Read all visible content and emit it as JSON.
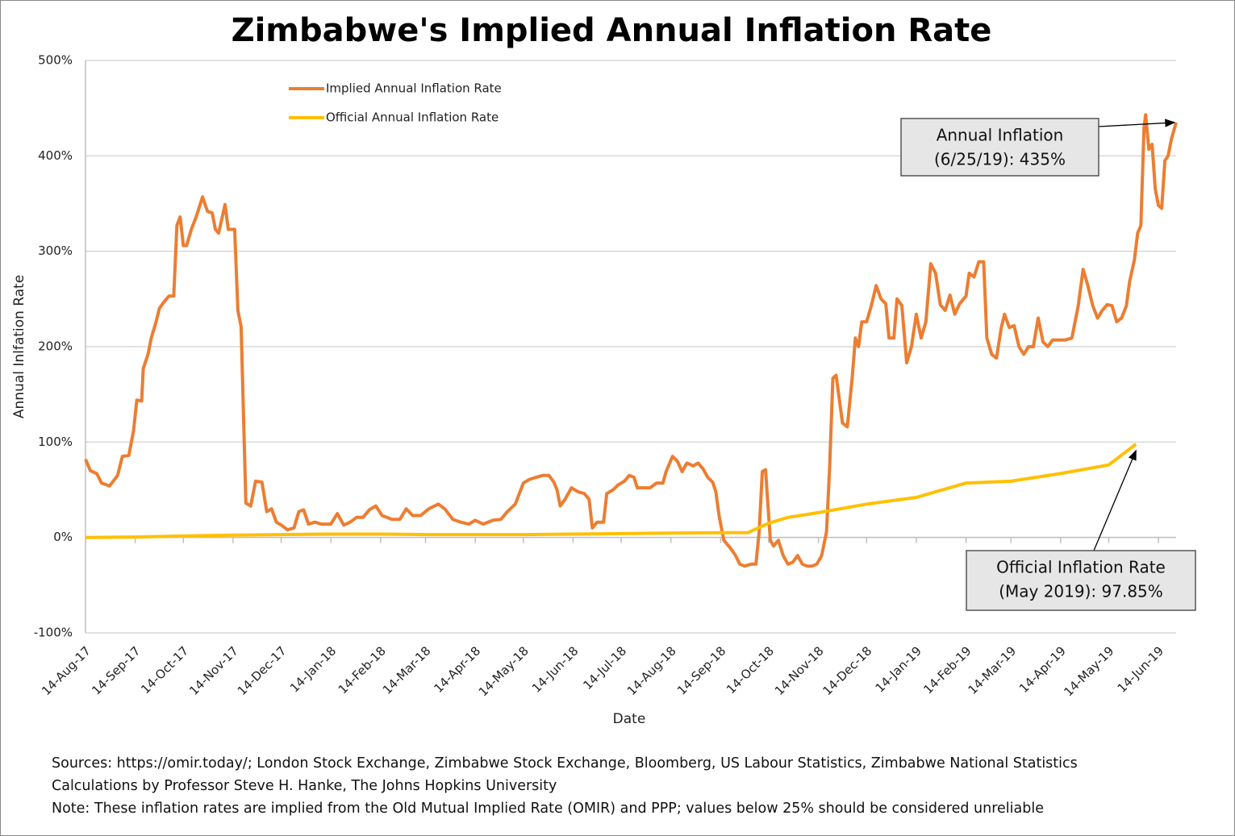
{
  "chart_data": {
    "type": "line",
    "title": "Zimbabwe's Implied Annual Inflation Rate",
    "x_label": "Date",
    "y_label": "Annual Inlfation Rate",
    "xlim": [
      "2017-08-14",
      "2019-06-25"
    ],
    "xticks": [
      {
        "value": "2017-08-14",
        "label": "14-Aug-17"
      },
      {
        "value": "2017-09-14",
        "label": "14-Sep-17"
      },
      {
        "value": "2017-10-14",
        "label": "14-Oct-17"
      },
      {
        "value": "2017-11-14",
        "label": "14-Nov-17"
      },
      {
        "value": "2017-12-14",
        "label": "14-Dec-17"
      },
      {
        "value": "2018-01-14",
        "label": "14-Jan-18"
      },
      {
        "value": "2018-02-14",
        "label": "14-Feb-18"
      },
      {
        "value": "2018-03-14",
        "label": "14-Mar-18"
      },
      {
        "value": "2018-04-14",
        "label": "14-Apr-18"
      },
      {
        "value": "2018-05-14",
        "label": "14-May-18"
      },
      {
        "value": "2018-06-14",
        "label": "14-Jun-18"
      },
      {
        "value": "2018-07-14",
        "label": "14-Jul-18"
      },
      {
        "value": "2018-08-14",
        "label": "14-Aug-18"
      },
      {
        "value": "2018-09-14",
        "label": "14-Sep-18"
      },
      {
        "value": "2018-10-14",
        "label": "14-Oct-18"
      },
      {
        "value": "2018-11-14",
        "label": "14-Nov-18"
      },
      {
        "value": "2018-12-14",
        "label": "14-Dec-18"
      },
      {
        "value": "2019-01-14",
        "label": "14-Jan-19"
      },
      {
        "value": "2019-02-14",
        "label": "14-Feb-19"
      },
      {
        "value": "2019-03-14",
        "label": "14-Mar-19"
      },
      {
        "value": "2019-04-14",
        "label": "14-Apr-19"
      },
      {
        "value": "2019-05-14",
        "label": "14-May-19"
      },
      {
        "value": "2019-06-14",
        "label": "14-Jun-19"
      }
    ],
    "ylim": [
      -100,
      500
    ],
    "yticks": [
      {
        "value": -100,
        "label": "-100%"
      },
      {
        "value": 0,
        "label": "0%"
      },
      {
        "value": 100,
        "label": "100%"
      },
      {
        "value": 200,
        "label": "200%"
      },
      {
        "value": 300,
        "label": "300%"
      },
      {
        "value": 400,
        "label": "400%"
      },
      {
        "value": 500,
        "label": "500%"
      }
    ],
    "grid": true,
    "legend": "top-left",
    "series": [
      {
        "name": "Implied Annual Inflation Rate",
        "color": "#ED7D31",
        "x": [
          "2017-08-14",
          "2017-08-17",
          "2017-08-21",
          "2017-08-24",
          "2017-08-29",
          "2017-09-03",
          "2017-09-06",
          "2017-09-10",
          "2017-09-13",
          "2017-09-15",
          "2017-09-18",
          "2017-09-19",
          "2017-09-22",
          "2017-09-24",
          "2017-09-27",
          "2017-09-29",
          "2017-10-02",
          "2017-10-05",
          "2017-10-08",
          "2017-10-10",
          "2017-10-12",
          "2017-10-14",
          "2017-10-16",
          "2017-10-19",
          "2017-10-22",
          "2017-10-26",
          "2017-10-29",
          "2017-11-01",
          "2017-11-03",
          "2017-11-05",
          "2017-11-09",
          "2017-11-11",
          "2017-11-15",
          "2017-11-17",
          "2017-11-19",
          "2017-11-22",
          "2017-11-25",
          "2017-11-28",
          "2017-12-02",
          "2017-12-05",
          "2017-12-08",
          "2017-12-11",
          "2017-12-14",
          "2017-12-18",
          "2017-12-22",
          "2017-12-25",
          "2017-12-28",
          "2017-12-31",
          "2018-01-04",
          "2018-01-08",
          "2018-01-14",
          "2018-01-18",
          "2018-01-22",
          "2018-01-26",
          "2018-01-30",
          "2018-02-03",
          "2018-02-07",
          "2018-02-11",
          "2018-02-15",
          "2018-02-21",
          "2018-02-26",
          "2018-03-02",
          "2018-03-06",
          "2018-03-11",
          "2018-03-16",
          "2018-03-22",
          "2018-03-26",
          "2018-03-31",
          "2018-04-05",
          "2018-04-10",
          "2018-04-14",
          "2018-04-19",
          "2018-04-25",
          "2018-04-30",
          "2018-05-04",
          "2018-05-09",
          "2018-05-14",
          "2018-05-18",
          "2018-05-22",
          "2018-05-26",
          "2018-05-30",
          "2018-06-02",
          "2018-06-04",
          "2018-06-06",
          "2018-06-09",
          "2018-06-13",
          "2018-06-17",
          "2018-06-21",
          "2018-06-24",
          "2018-06-26",
          "2018-06-29",
          "2018-07-03",
          "2018-07-05",
          "2018-07-09",
          "2018-07-12",
          "2018-07-16",
          "2018-07-19",
          "2018-07-22",
          "2018-07-24",
          "2018-07-28",
          "2018-08-01",
          "2018-08-05",
          "2018-08-09",
          "2018-08-11",
          "2018-08-15",
          "2018-08-18",
          "2018-08-21",
          "2018-08-24",
          "2018-08-28",
          "2018-08-31",
          "2018-09-03",
          "2018-09-06",
          "2018-09-09",
          "2018-09-11",
          "2018-09-13",
          "2018-09-16",
          "2018-09-20",
          "2018-09-23",
          "2018-09-26",
          "2018-09-29",
          "2018-10-03",
          "2018-10-06",
          "2018-10-08",
          "2018-10-10",
          "2018-10-12",
          "2018-10-15",
          "2018-10-17",
          "2018-10-20",
          "2018-10-23",
          "2018-10-26",
          "2018-10-29",
          "2018-11-01",
          "2018-11-04",
          "2018-11-07",
          "2018-11-10",
          "2018-11-13",
          "2018-11-16",
          "2018-11-19",
          "2018-11-21",
          "2018-11-23",
          "2018-11-25",
          "2018-11-29",
          "2018-12-02",
          "2018-12-05",
          "2018-12-07",
          "2018-12-09",
          "2018-12-11",
          "2018-12-14",
          "2018-12-17",
          "2018-12-20",
          "2018-12-23",
          "2018-12-26",
          "2018-12-28",
          "2018-12-31",
          "2019-01-02",
          "2019-01-05",
          "2019-01-08",
          "2019-01-11",
          "2019-01-14",
          "2019-01-17",
          "2019-01-20",
          "2019-01-23",
          "2019-01-26",
          "2019-01-29",
          "2019-02-01",
          "2019-02-04",
          "2019-02-07",
          "2019-02-10",
          "2019-02-14",
          "2019-02-16",
          "2019-02-19",
          "2019-02-22",
          "2019-02-25",
          "2019-02-27",
          "2019-03-02",
          "2019-03-05",
          "2019-03-08",
          "2019-03-10",
          "2019-03-13",
          "2019-03-16",
          "2019-03-19",
          "2019-03-22",
          "2019-03-25",
          "2019-03-28",
          "2019-03-31",
          "2019-04-03",
          "2019-04-06",
          "2019-04-09",
          "2019-04-13",
          "2019-04-17",
          "2019-04-21",
          "2019-04-25",
          "2019-04-28",
          "2019-05-01",
          "2019-05-04",
          "2019-05-07",
          "2019-05-10",
          "2019-05-13",
          "2019-05-16",
          "2019-05-19",
          "2019-05-22",
          "2019-05-25",
          "2019-05-27",
          "2019-05-30",
          "2019-06-01",
          "2019-06-03",
          "2019-06-05",
          "2019-06-06",
          "2019-06-08",
          "2019-06-10",
          "2019-06-12",
          "2019-06-14",
          "2019-06-16",
          "2019-06-18",
          "2019-06-20",
          "2019-06-22",
          "2019-06-25"
        ],
        "values": [
          82,
          70,
          67,
          57,
          54,
          65,
          85,
          86,
          112,
          144,
          143,
          177,
          192,
          209,
          226,
          240,
          247,
          253,
          253,
          327,
          336,
          306,
          306,
          323,
          336,
          357,
          342,
          340,
          323,
          319,
          349,
          323,
          323,
          238,
          221,
          36,
          33,
          59,
          58,
          27,
          30,
          16,
          13,
          8,
          10,
          27,
          29,
          14,
          16,
          14,
          14,
          25,
          13,
          16,
          21,
          21,
          29,
          33,
          23,
          19,
          19,
          30,
          23,
          23,
          30,
          35,
          30,
          19,
          16,
          14,
          18,
          14,
          18,
          19,
          27,
          35,
          57,
          61,
          63,
          65,
          65,
          58,
          50,
          33,
          40,
          52,
          48,
          46,
          40,
          10,
          16,
          16,
          46,
          50,
          55,
          59,
          65,
          63,
          52,
          52,
          52,
          57,
          57,
          69,
          85,
          80,
          69,
          78,
          75,
          78,
          72,
          63,
          58,
          48,
          23,
          -3,
          -11,
          -18,
          -28,
          -30,
          -28,
          -28,
          6,
          69,
          71,
          -3,
          -9,
          -3,
          -19,
          -28,
          -26,
          -19,
          -28,
          -30,
          -30,
          -28,
          -19,
          6,
          74,
          167,
          170,
          120,
          116,
          167,
          209,
          200,
          226,
          226,
          243,
          264,
          250,
          245,
          209,
          209,
          250,
          243,
          183,
          200,
          234,
          209,
          226,
          287,
          277,
          244,
          238,
          254,
          234,
          245,
          253,
          277,
          273,
          289,
          289,
          209,
          192,
          188,
          220,
          234,
          220,
          222,
          200,
          192,
          200,
          200,
          230,
          205,
          200,
          207,
          207,
          207,
          209,
          243,
          281,
          264,
          243,
          230,
          238,
          244,
          243,
          226,
          230,
          243,
          268,
          291,
          319,
          327,
          429,
          443,
          407,
          412,
          365,
          348,
          345,
          395,
          400,
          417,
          435
        ]
      },
      {
        "name": "Official Annual Inflation Rate",
        "color": "#FFC000",
        "x": [
          "2017-08-14",
          "2017-09-14",
          "2017-10-14",
          "2017-11-14",
          "2017-12-14",
          "2018-01-14",
          "2018-02-14",
          "2018-03-14",
          "2018-04-14",
          "2018-05-14",
          "2018-06-14",
          "2018-07-14",
          "2018-08-14",
          "2018-09-14",
          "2018-10-01",
          "2018-10-14",
          "2018-10-26",
          "2018-11-14",
          "2018-12-14",
          "2019-01-14",
          "2019-02-14",
          "2019-03-14",
          "2019-04-14",
          "2019-05-14",
          "2019-05-31"
        ],
        "values": [
          0,
          0.5,
          1.5,
          2.5,
          3,
          3.5,
          3.5,
          3,
          3,
          3,
          3.5,
          4,
          4.5,
          5,
          5,
          15,
          21,
          26,
          35,
          42,
          57,
          59,
          67,
          76,
          97.85
        ]
      }
    ],
    "annotations": [
      {
        "lines": [
          "Annual Inflation",
          "(6/25/19): 435%"
        ],
        "series": 0
      },
      {
        "lines": [
          "Official Inflation Rate",
          "(May 2019): 97.85%"
        ],
        "series": 1
      }
    ],
    "notes": [
      "Sources: https://omir.today/; London Stock Exchange, Zimbabwe Stock Exchange, Bloomberg, US Labour Statistics, Zimbabwe National Statistics",
      "Calculations by Professor Steve H. Hanke, The Johns Hopkins University",
      "Note: These inflation rates are implied from the Old Mutual Implied Rate (OMIR) and PPP; values below 25% should be considered unreliable"
    ]
  }
}
